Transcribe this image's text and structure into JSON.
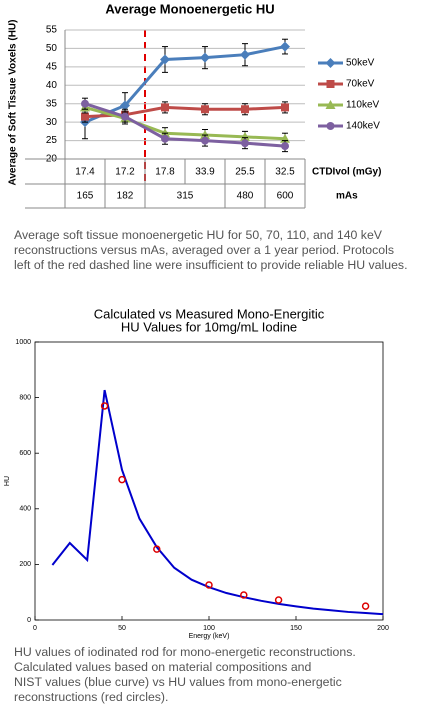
{
  "chart_data": [
    {
      "type": "line",
      "title": "Average Monoenergetic HU",
      "y_label": "Average of Soft Tissue Voxels (HU)",
      "categories": [
        "17.4",
        "17.2",
        "17.8",
        "33.9",
        "25.5",
        "32.5"
      ],
      "category_label": "CTDIvol (mGy)",
      "mas": [
        165,
        182,
        315,
        null,
        480,
        600
      ],
      "mas_label": "mAs",
      "ylim": [
        20,
        55
      ],
      "yticks": [
        20,
        25,
        30,
        35,
        40,
        45,
        50,
        55
      ],
      "grid": true,
      "legend": "right",
      "series": [
        {
          "name": "50keV",
          "color": "#4a7ebb",
          "marker": "diamond",
          "values": [
            30,
            34.5,
            47,
            47.5,
            48.3,
            50.5
          ],
          "errors": [
            4.5,
            3.5,
            3.5,
            3,
            3,
            2
          ]
        },
        {
          "name": "70keV",
          "color": "#be4b48",
          "marker": "square",
          "values": [
            31.5,
            32,
            34,
            33.5,
            33.5,
            34
          ],
          "errors": [
            1.5,
            1.5,
            1.5,
            1.5,
            1.5,
            1.5
          ]
        },
        {
          "name": "110keV",
          "color": "#98b954",
          "marker": "triangle",
          "values": [
            34,
            31,
            27,
            26.5,
            26,
            25.5
          ],
          "errors": [
            1.5,
            1.5,
            1.5,
            1.5,
            1.5,
            1.5
          ]
        },
        {
          "name": "140keV",
          "color": "#7d60a0",
          "marker": "circle",
          "values": [
            35,
            31.5,
            25.5,
            25,
            24.3,
            23.5
          ],
          "errors": [
            1.5,
            1.5,
            1.5,
            1.5,
            1.5,
            1.5
          ]
        }
      ]
    },
    {
      "type": "line",
      "title": [
        "Calculated vs Measured Mono-Energitic",
        "HU Values for 10mg/mL Iodine"
      ],
      "x_label": "Energy (keV)",
      "y_label": "HU",
      "xlim": [
        0,
        200
      ],
      "xticks": [
        0,
        50,
        100,
        150,
        200
      ],
      "ylim": [
        0,
        1000
      ],
      "yticks": [
        0,
        200,
        400,
        600,
        800,
        1000
      ],
      "grid": false,
      "series": [
        {
          "type": "line",
          "color": "#0000cc",
          "x": [
            10,
            20,
            30,
            40,
            50,
            60,
            70,
            80,
            90,
            100,
            110,
            120,
            130,
            140,
            150,
            160,
            170,
            180,
            190,
            200
          ],
          "values": [
            198,
            277,
            216,
            827,
            540,
            365,
            262,
            188,
            145,
            118,
            97,
            82,
            69,
            58,
            49,
            41,
            35,
            29,
            25,
            21
          ]
        },
        {
          "type": "scatter",
          "color": "#dd0000",
          "x": [
            40,
            50,
            70,
            100,
            120,
            140,
            190
          ],
          "values": [
            770,
            505,
            255,
            126,
            90,
            72,
            50
          ]
        }
      ]
    }
  ],
  "captions": [
    "Average soft tissue monoenergetic HU for 50, 70, 110, and 140 keV reconstructions versus mAs, averaged over a 1 year period. Protocols left of the red dashed line were insufficient to provide reliable HU values.",
    "HU values of iodinated rod for mono-energetic reconstructions.\nCalculated values based on material compositions and\nNIST values (blue curve) vs HU values from mono-energetic\nreconstructions (red circles)."
  ]
}
